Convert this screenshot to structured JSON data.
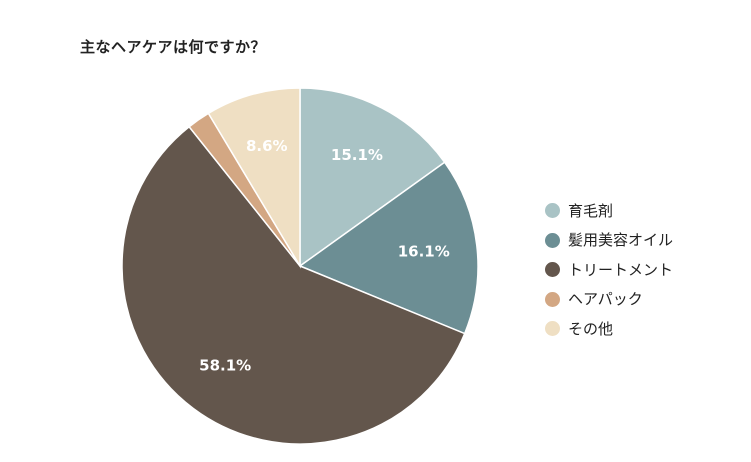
{
  "chart_data": {
    "type": "pie",
    "title": "主なヘアケアは何ですか？",
    "categories": [
      "育毛剤",
      "髪用美容オイル",
      "トリートメント",
      "ヘアパック",
      "その他"
    ],
    "values": [
      15.1,
      16.1,
      58.1,
      2.1,
      8.6
    ],
    "data_labels": [
      "15.1%",
      "16.1%",
      "58.1%",
      "",
      "8.6%"
    ],
    "colors": [
      "#a9c3c5",
      "#6c8e94",
      "#63564c",
      "#d3a783",
      "#efdfc3"
    ],
    "start_angle": "12 o'clock",
    "direction": "clockwise",
    "legend_position": "right"
  }
}
